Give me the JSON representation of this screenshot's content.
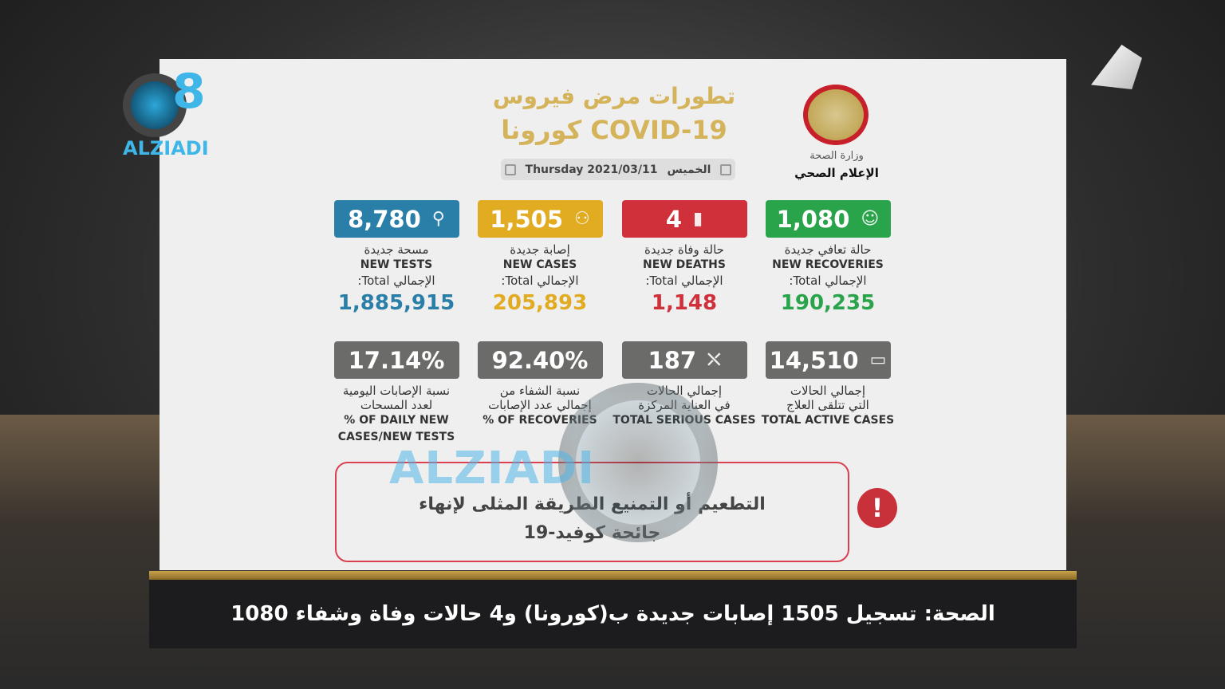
{
  "header": {
    "title_line1": "تطورات مرض فيروس",
    "title_line2": "كورونا COVID-19",
    "date_en": "Thursday 2021/03/11",
    "date_ar": "الخميس"
  },
  "ministry": {
    "name": "وزارة الصحة",
    "department": "الإعلام الصحي"
  },
  "stats": [
    {
      "value": "1,080",
      "ar": "حالة تعافي جديدة",
      "en": "NEW RECOVERIES",
      "total_label": "الإجمالي Total:",
      "total": "190,235",
      "color": "#2aa44a",
      "icon": "recovered-person-icon"
    },
    {
      "value": "4",
      "ar": "حالة وفاة جديدة",
      "en": "NEW DEATHS",
      "total_label": "الإجمالي Total:",
      "total": "1,148",
      "color": "#d0303a",
      "icon": "gravestone-icon"
    },
    {
      "value": "1,505",
      "ar": "إصابة جديدة",
      "en": "NEW CASES",
      "total_label": "الإجمالي Total:",
      "total": "205,893",
      "color": "#e1ac22",
      "icon": "people-group-icon"
    },
    {
      "value": "8,780",
      "ar": "مسحة جديدة",
      "en": "NEW TESTS",
      "total_label": "الإجمالي Total:",
      "total": "1,885,915",
      "color": "#2a7fa8",
      "icon": "test-tube-icon"
    }
  ],
  "stats2": [
    {
      "value": "14,510",
      "ar1": "إجمالي الحالات",
      "ar2": "التي تتلقى العلاج",
      "en": "TOTAL ACTIVE CASES",
      "icon": "medical-case-icon"
    },
    {
      "value": "187",
      "ar1": "إجمالي الحالات",
      "ar2": "في العناية المركزة",
      "en": "TOTAL SERIOUS CASES",
      "icon": "hospital-bed-icon"
    },
    {
      "value": "92.40%",
      "ar1": "نسبة الشفاء من",
      "ar2": "إجمالي عدد الإصابات",
      "en": "% OF RECOVERIES",
      "icon": ""
    },
    {
      "value": "17.14%",
      "ar1": "نسبة الإصابات اليومية",
      "ar2": "لعدد المسحات",
      "en": "% OF DAILY NEW CASES/NEW TESTS",
      "icon": ""
    }
  ],
  "grey_box_color": "#6b6b69",
  "notice": {
    "line1": "التطعيم أو التمنيع الطريقة المثلى لإنهاء",
    "line2": "جائحة كوفيد-19"
  },
  "ticker": "الصحة: تسجيل 1505 إصابات جديدة ب(كورونا) و4 حالات وفاة وشفاء 1080",
  "logo": {
    "text": "ALZIADI",
    "mark": "Q8"
  },
  "watermark": "ALZIADI Q8 .COM"
}
